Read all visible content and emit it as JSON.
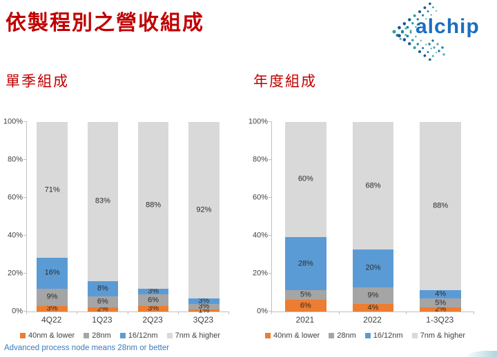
{
  "page": {
    "title": "依製程別之營收組成",
    "logo_text": "alchip",
    "footnote": "Advanced process node means 28nm or better"
  },
  "colors": {
    "title_red": "#C00000",
    "footnote_blue": "#3A7BBE",
    "axis_text": "#404040",
    "axis_line": "#BFBFBF",
    "label_text": "#2B2B2B",
    "logo_blue": "#1B6EC0",
    "series_orange": "#ED7D31",
    "series_gray": "#A5A5A5",
    "series_blue": "#5B9BD5",
    "series_lightgray": "#D9D9D9"
  },
  "chart_data": [
    {
      "type": "bar",
      "stacked": true,
      "subtitle": "單季組成",
      "categories": [
        "4Q22",
        "1Q23",
        "2Q23",
        "3Q23"
      ],
      "series": [
        {
          "name": "40nm & lower",
          "color": "#ED7D31",
          "values": [
            3,
            2,
            3,
            1
          ]
        },
        {
          "name": "28nm",
          "color": "#A5A5A5",
          "values": [
            9,
            6,
            6,
            3
          ]
        },
        {
          "name": "16/12nm",
          "color": "#5B9BD5",
          "values": [
            16,
            8,
            3,
            3
          ]
        },
        {
          "name": "7nm & higher",
          "color": "#D9D9D9",
          "values": [
            71,
            83,
            88,
            92
          ]
        }
      ],
      "ylim": [
        0,
        100
      ],
      "yticks": [
        "0%",
        "20%",
        "40%",
        "60%",
        "80%",
        "100%"
      ],
      "grid": false,
      "legend_position": "bottom"
    },
    {
      "type": "bar",
      "stacked": true,
      "subtitle": "年度組成",
      "categories": [
        "2021",
        "2022",
        "1-3Q23"
      ],
      "series": [
        {
          "name": "40nm & lower",
          "color": "#ED7D31",
          "values": [
            6,
            4,
            2
          ]
        },
        {
          "name": "28nm",
          "color": "#A5A5A5",
          "values": [
            5,
            9,
            5
          ]
        },
        {
          "name": "16/12nm",
          "color": "#5B9BD5",
          "values": [
            28,
            20,
            4
          ]
        },
        {
          "name": "7nm & higher",
          "color": "#D9D9D9",
          "values": [
            60,
            68,
            88
          ]
        }
      ],
      "ylim": [
        0,
        100
      ],
      "yticks": [
        "0%",
        "20%",
        "40%",
        "60%",
        "80%",
        "100%"
      ],
      "grid": false,
      "legend_position": "bottom"
    }
  ]
}
